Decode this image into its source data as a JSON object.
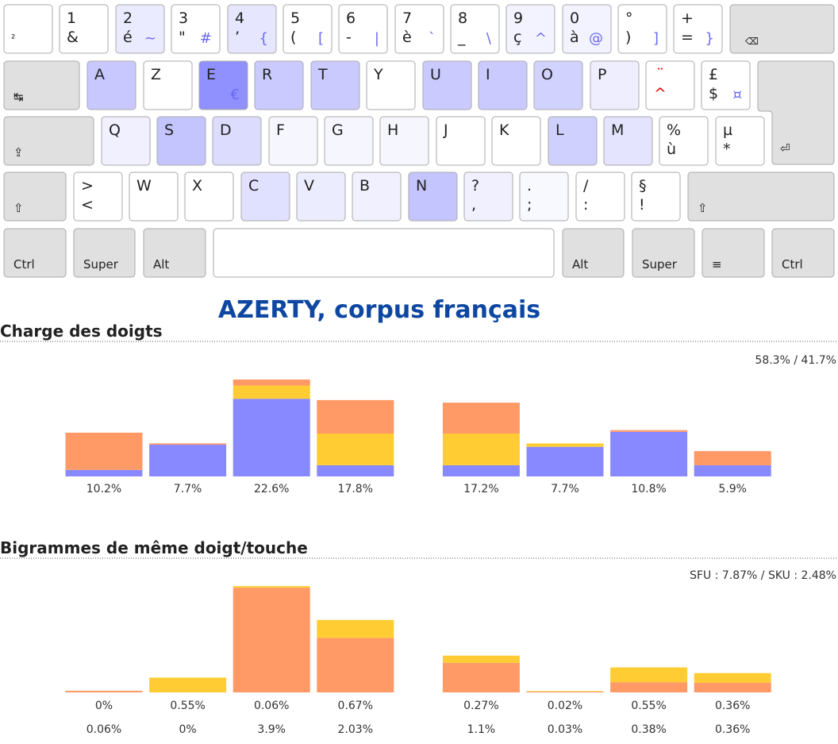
{
  "keyboard": {
    "rows": [
      [
        {
          "b": "²"
        },
        {
          "t": "1",
          "b": "&"
        },
        {
          "t": "2",
          "b": "é",
          "br": "~"
        },
        {
          "t": "3",
          "b": "\"",
          "br": "#"
        },
        {
          "t": "4",
          "b": "’",
          "br": "{"
        },
        {
          "t": "5",
          "b": "(",
          "br": "["
        },
        {
          "t": "6",
          "b": "-",
          "br": "|"
        },
        {
          "t": "7",
          "b": "è",
          "br": "`"
        },
        {
          "t": "8",
          "b": "_",
          "br": "\\"
        },
        {
          "t": "9",
          "b": "ç",
          "br": "^"
        },
        {
          "t": "0",
          "b": "à",
          "br": "@"
        },
        {
          "t": "°",
          "b": ")",
          "br": "]"
        },
        {
          "t": "+",
          "b": "=",
          "br": "}"
        },
        {
          "m": "⌫"
        }
      ],
      [
        {
          "m": "↹"
        },
        {
          "t": "A"
        },
        {
          "t": "Z"
        },
        {
          "t": "E",
          "br": "€"
        },
        {
          "t": "R"
        },
        {
          "t": "T"
        },
        {
          "t": "Y"
        },
        {
          "t": "U"
        },
        {
          "t": "I"
        },
        {
          "t": "O"
        },
        {
          "t": "P"
        },
        {
          "t": "¨",
          "b": "^"
        },
        {
          "t": "£",
          "b": "$",
          "br": "¤"
        },
        {
          "m": "⏎"
        }
      ],
      [
        {
          "m": "⇪"
        },
        {
          "t": "Q"
        },
        {
          "t": "S"
        },
        {
          "t": "D"
        },
        {
          "t": "F"
        },
        {
          "t": "G"
        },
        {
          "t": "H"
        },
        {
          "t": "J"
        },
        {
          "t": "K"
        },
        {
          "t": "L"
        },
        {
          "t": "M"
        },
        {
          "t": "%",
          "b": "ù"
        },
        {
          "t": "µ",
          "b": "*"
        }
      ],
      [
        {
          "m": "⇧"
        },
        {
          "t": ">",
          "b": "<"
        },
        {
          "t": "W"
        },
        {
          "t": "X"
        },
        {
          "t": "C"
        },
        {
          "t": "V"
        },
        {
          "t": "B"
        },
        {
          "t": "N"
        },
        {
          "t": "?",
          "b": ","
        },
        {
          "t": ".",
          "b": ";"
        },
        {
          "t": "/",
          "b": ":"
        },
        {
          "t": "§",
          "b": "!"
        },
        {
          "m": "⇧"
        }
      ],
      [
        {
          "m": "Ctrl"
        },
        {
          "m": "Super"
        },
        {
          "m": "Alt"
        },
        {
          "m": "Alt"
        },
        {
          "m": "Super"
        },
        {
          "m": "≡"
        },
        {
          "m": "Ctrl"
        }
      ]
    ]
  },
  "title": "AZERTY, corpus français",
  "chart_data": [
    {
      "type": "bar",
      "stacked": true,
      "title": "Charge des doigts",
      "summary": "58.3% / 41.7%",
      "values": [
        10.2,
        7.7,
        22.6,
        17.8,
        17.2,
        7.7,
        10.8,
        5.9
      ],
      "value_labels": [
        "10.2%",
        "7.7%",
        "22.6%",
        "17.8%",
        "17.2%",
        "7.7%",
        "10.8%",
        "5.9%"
      ],
      "series": [
        {
          "color": "#8888ff",
          "values": [
            1.5,
            7.4,
            18.1,
            2.6,
            2.6,
            6.9,
            10.4,
            2.6
          ]
        },
        {
          "color": "#ffcc33",
          "values": [
            0,
            0,
            3.1,
            7.4,
            7.4,
            0.8,
            0,
            0
          ]
        },
        {
          "color": "#ff9966",
          "values": [
            8.7,
            0.3,
            1.4,
            7.8,
            7.2,
            0,
            0.4,
            3.3
          ]
        }
      ]
    },
    {
      "type": "bar",
      "stacked": true,
      "title": "Bigrammes de même doigt/touche",
      "summary": "SFU : 7.87% / SKU : 2.48%",
      "series": [
        {
          "color": "#ff9966",
          "values": [
            0.06,
            0,
            3.9,
            2.03,
            1.1,
            0.03,
            0.38,
            0.36
          ],
          "value_labels": [
            "0.06%",
            "0%",
            "3.9%",
            "2.03%",
            "1.1%",
            "0.03%",
            "0.38%",
            "0.36%"
          ]
        },
        {
          "color": "#ffcc33",
          "values": [
            0,
            0.55,
            0.06,
            0.67,
            0.27,
            0.02,
            0.55,
            0.36
          ],
          "value_labels": [
            "0%",
            "0.55%",
            "0.06%",
            "0.67%",
            "0.27%",
            "0.02%",
            "0.55%",
            "0.36%"
          ]
        }
      ]
    }
  ]
}
